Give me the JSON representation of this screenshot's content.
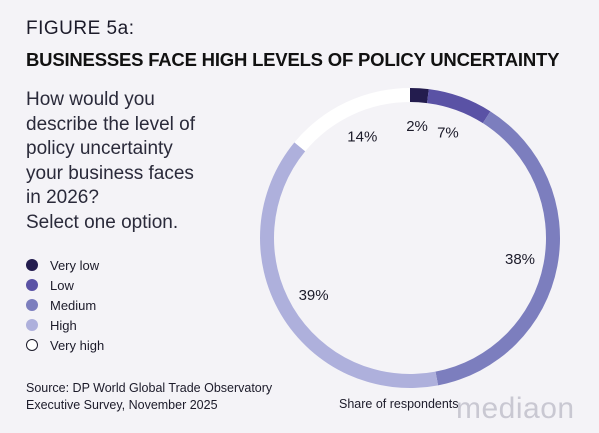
{
  "figure_label": "FIGURE 5a:",
  "title": "BUSINESSES FACE HIGH LEVELS OF POLICY UNCERTAINTY",
  "question": "How would you\ndescribe the level of\npolicy uncertainty\nyour business faces\nin 2026?\nSelect one option.",
  "source": "Source: DP World Global Trade Observatory\nExecutive Survey, November 2025",
  "footer_label": "Share of respondents",
  "brand": "mediaon",
  "chart_data": {
    "type": "pie",
    "style": "donut",
    "title": "",
    "legend_placement": "left",
    "categories": [
      "Very low",
      "Low",
      "Medium",
      "High",
      "Very high"
    ],
    "values": [
      2,
      7,
      38,
      39,
      14
    ],
    "labels": [
      "2%",
      "7%",
      "38%",
      "39%",
      "14%"
    ],
    "colors": [
      "#231c4e",
      "#5a52a5",
      "#7c7ebe",
      "#aeb0dc",
      "#ffffff"
    ],
    "unit": "%"
  }
}
